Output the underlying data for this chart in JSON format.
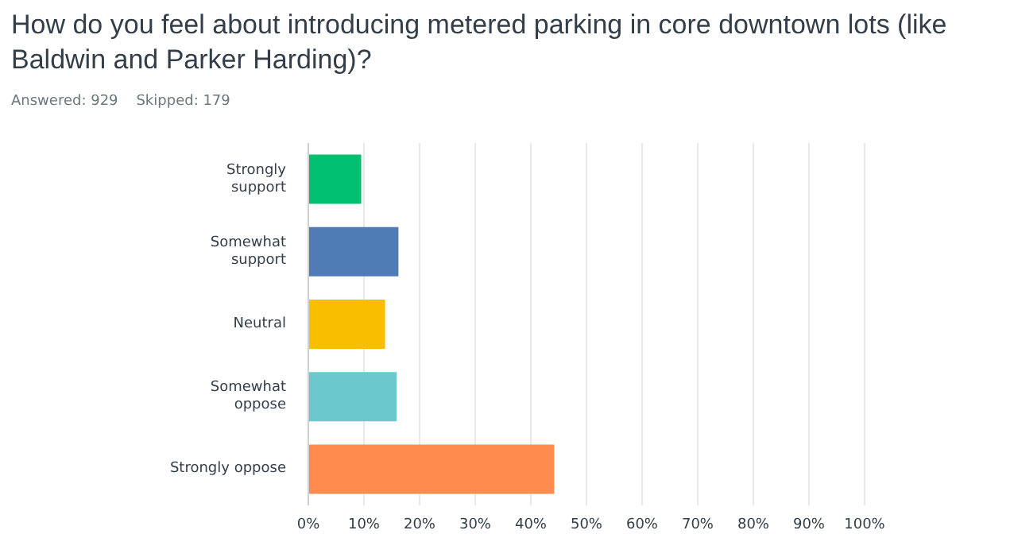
{
  "chart_data": {
    "type": "bar",
    "orientation": "horizontal",
    "title": "How do you feel about introducing metered parking in core downtown lots (like Baldwin and Parker Harding)?",
    "subtitle": "Answered: 929    Skipped: 179",
    "categories": [
      "Strongly support",
      "Somewhat support",
      "Neutral",
      "Somewhat oppose",
      "Strongly oppose"
    ],
    "values": [
      9.5,
      16.2,
      13.8,
      15.9,
      44.2
    ],
    "colors": [
      "#00bf6f",
      "#507cb6",
      "#f9be00",
      "#6bc8cd",
      "#ff8b4f"
    ],
    "xlim": [
      0,
      100
    ],
    "xticks": [
      {
        "value": 0,
        "label": "0%"
      },
      {
        "value": 10,
        "label": "10%"
      },
      {
        "value": 20,
        "label": "20%"
      },
      {
        "value": 30,
        "label": "30%"
      },
      {
        "value": 40,
        "label": "40%"
      },
      {
        "value": 50,
        "label": "50%"
      },
      {
        "value": 60,
        "label": "60%"
      },
      {
        "value": 70,
        "label": "70%"
      },
      {
        "value": 80,
        "label": "80%"
      },
      {
        "value": 90,
        "label": "90%"
      },
      {
        "value": 100,
        "label": "100%"
      }
    ],
    "grid": "x"
  }
}
